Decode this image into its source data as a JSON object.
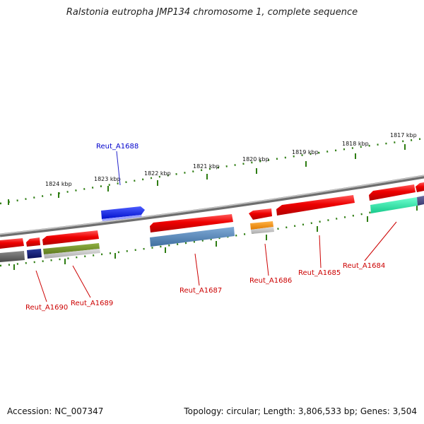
{
  "title": "Ralstonia eutropha JMP134 chromosome 1, complete sequence",
  "footer": {
    "accession": "Accession: NC_007347",
    "summary": "Topology: circular; Length: 3,806,533 bp; Genes: 3,504"
  },
  "colors": {
    "backbone": "#8c8c8c",
    "tick": "#2e7d12",
    "red_label": "#cc0000",
    "blue_label": "#0000cc"
  },
  "kbp_labels": [
    "1824 kbp",
    "1823 kbp",
    "1822 kbp",
    "1821 kbp",
    "1820 kbp",
    "1819 kbp",
    "1818 kbp",
    "1817 kbp"
  ],
  "gene_labels": [
    {
      "name": "Reut_A1688",
      "color": "blue"
    },
    {
      "name": "Reut_A1690",
      "color": "red"
    },
    {
      "name": "Reut_A1689",
      "color": "red"
    },
    {
      "name": "Reut_A1687",
      "color": "red"
    },
    {
      "name": "Reut_A1686",
      "color": "red"
    },
    {
      "name": "Reut_A1685",
      "color": "red"
    },
    {
      "name": "Reut_A1684",
      "color": "red"
    }
  ]
}
